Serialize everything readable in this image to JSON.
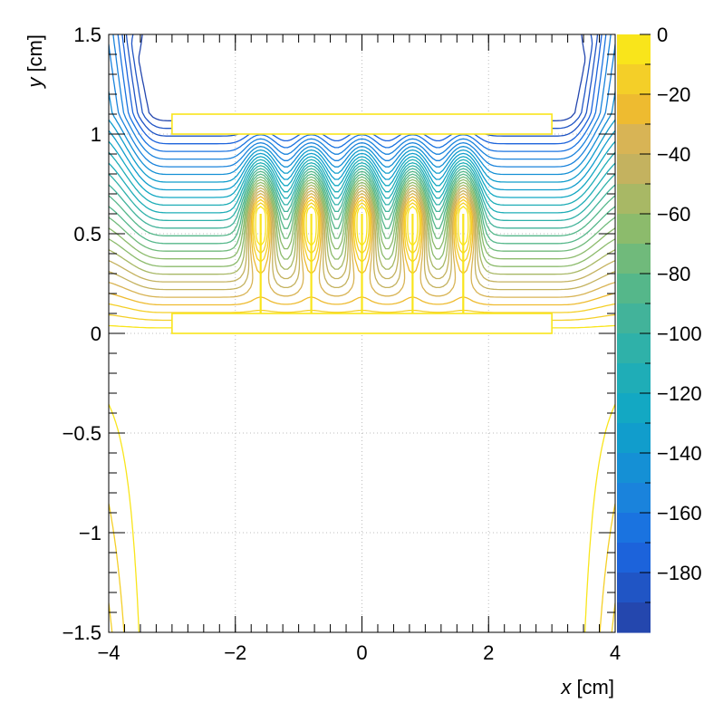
{
  "chart_data": {
    "type": "contour",
    "title": "",
    "xlabel_var": "x",
    "xlabel_unit": " [cm]",
    "ylabel_var": "y",
    "ylabel_unit": " [cm]",
    "xlim": [
      -4,
      4
    ],
    "ylim": [
      -1.5,
      1.5
    ],
    "xticks": [
      -4,
      -2,
      0,
      2,
      4
    ],
    "xtick_labels": [
      "−4",
      "−2",
      "0",
      "2",
      "4"
    ],
    "yticks": [
      -1.5,
      -1,
      -0.5,
      0,
      0.5,
      1,
      1.5
    ],
    "ytick_labels": [
      "−1.5",
      "−1",
      "−0.5",
      "0",
      "0.5",
      "1",
      "1.5"
    ],
    "grid": true,
    "colorbar": {
      "range": [
        -200,
        0
      ],
      "ticks": [
        0,
        -20,
        -40,
        -60,
        -80,
        -100,
        -120,
        -140,
        -160,
        -180
      ],
      "tick_labels": [
        "0",
        "−20",
        "−40",
        "−60",
        "−80",
        "−100",
        "−120",
        "−140",
        "−160",
        "−180"
      ],
      "colors": [
        "#f9e51b",
        "#f4cf28",
        "#eebb30",
        "#d8b455",
        "#c4b25f",
        "#a8b865",
        "#8cbb6c",
        "#70ba7b",
        "#55b78a",
        "#42b39a",
        "#2fb1a9",
        "#1fadb7",
        "#13a8c3",
        "#119dcc",
        "#1590d5",
        "#1a83dc",
        "#1a73e0",
        "#1c63db",
        "#2055c5",
        "#2447ae"
      ]
    },
    "electrodes": [
      {
        "name": "top plate",
        "x": [
          -3.0,
          3.0
        ],
        "y": [
          1.0,
          1.1
        ]
      },
      {
        "name": "bottom plate",
        "x": [
          -3.0,
          3.0
        ],
        "y": [
          0.0,
          0.1
        ]
      }
    ],
    "strips": [
      -1.6,
      -0.8,
      0.0,
      0.8,
      1.6
    ],
    "strip_top_y": 0.6
  }
}
